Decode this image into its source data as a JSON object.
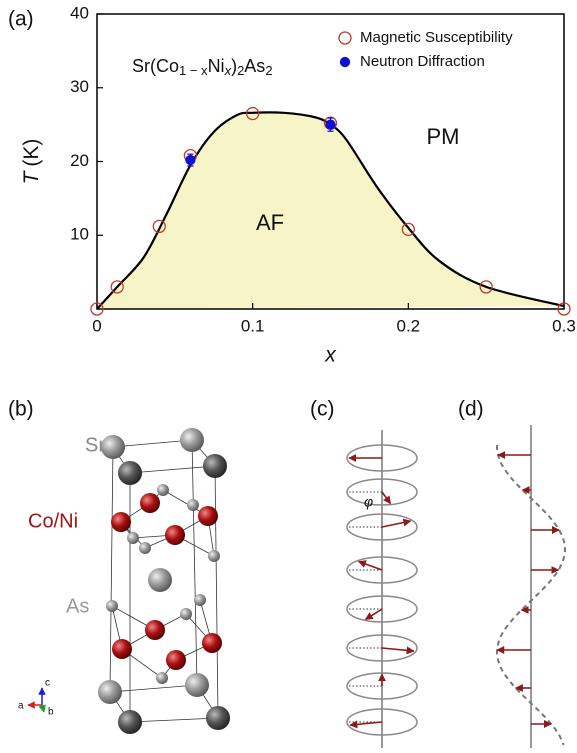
{
  "chart_data": {
    "type": "scatter",
    "panel_label": "(a)",
    "xlabel": "x",
    "ylabel": {
      "symbol": "T",
      "unit": "(K)"
    },
    "xlim": [
      0,
      0.3
    ],
    "xticks": [
      0,
      0.1,
      0.2,
      0.3
    ],
    "ylim": [
      0,
      40
    ],
    "yticks": [
      10,
      20,
      30,
      40
    ],
    "legend": "upper right",
    "annotations": {
      "formula": [
        "Sr(Co",
        "1 − x",
        "Ni",
        "x",
        ")",
        "2",
        "As",
        "2"
      ],
      "pm": "PM",
      "af": "AF"
    },
    "series": [
      {
        "name": "Magnetic Susceptibility",
        "color": "#c0392b",
        "marker": "open-circle",
        "x": [
          0,
          0.013,
          0.04,
          0.06,
          0.1,
          0.15,
          0.2,
          0.25,
          0.3
        ],
        "values": [
          0,
          3,
          11.2,
          20.8,
          26.5,
          25.2,
          10.8,
          3,
          0
        ]
      },
      {
        "name": "Neutron Diffraction",
        "color": "#1010d0",
        "marker": "filled-circle",
        "x": [
          0.06,
          0.15
        ],
        "values": [
          20.2,
          25
        ],
        "errors": [
          0.8,
          0.9
        ]
      },
      {
        "type": "line",
        "color": "#000000",
        "fill": "#f7f5c8",
        "x": [
          0,
          0.013,
          0.03,
          0.045,
          0.06,
          0.075,
          0.09,
          0.1,
          0.12,
          0.14,
          0.15,
          0.16,
          0.18,
          0.2,
          0.22,
          0.25,
          0.3
        ],
        "values": [
          0,
          3,
          7,
          13,
          19.5,
          24,
          26.3,
          26.6,
          26.6,
          26,
          25,
          23,
          16.5,
          11,
          6.5,
          3,
          0.4
        ]
      }
    ]
  },
  "panels": {
    "b": {
      "label": "(b)",
      "sr": "Sr",
      "coni": "Co/Ni",
      "as": "As",
      "axis_a": "a",
      "axis_b": "b",
      "axis_c": "c"
    },
    "c": {
      "label": "(c)",
      "phi": "φ"
    },
    "d": {
      "label": "(d)"
    }
  }
}
